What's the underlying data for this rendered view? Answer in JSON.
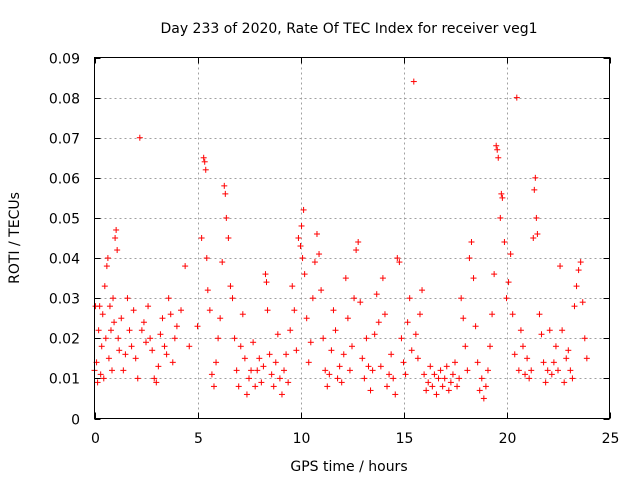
{
  "chart_data": {
    "type": "scatter",
    "title": "Day 233 of 2020, Rate Of TEC Index for receiver veg1",
    "xlabel": "GPS time / hours",
    "ylabel": "ROTI / TECUs",
    "xlim": [
      0,
      25
    ],
    "ylim": [
      0,
      0.09
    ],
    "xticks": [
      0,
      5,
      10,
      15,
      20,
      25
    ],
    "xtick_labels": [
      "0",
      "5",
      "10",
      "15",
      "20",
      "25"
    ],
    "yticks": [
      0,
      0.01,
      0.02,
      0.03,
      0.04,
      0.05,
      0.06,
      0.07,
      0.08,
      0.09
    ],
    "ytick_labels": [
      "0",
      "0.01",
      "0.02",
      "0.03",
      "0.04",
      "0.05",
      "0.06",
      "0.07",
      "0.08",
      "0.09"
    ],
    "grid": true,
    "marker": "+",
    "color": "#ff0000",
    "series": [
      {
        "name": "ROTI",
        "points": [
          [
            0.0,
            0.012
          ],
          [
            0.05,
            0.028
          ],
          [
            0.1,
            0.014
          ],
          [
            0.15,
            0.009
          ],
          [
            0.2,
            0.022
          ],
          [
            0.25,
            0.028
          ],
          [
            0.3,
            0.011
          ],
          [
            0.35,
            0.018
          ],
          [
            0.4,
            0.026
          ],
          [
            0.45,
            0.01
          ],
          [
            0.5,
            0.033
          ],
          [
            0.55,
            0.02
          ],
          [
            0.6,
            0.038
          ],
          [
            0.65,
            0.04
          ],
          [
            0.7,
            0.015
          ],
          [
            0.75,
            0.028
          ],
          [
            0.8,
            0.022
          ],
          [
            0.85,
            0.012
          ],
          [
            0.9,
            0.03
          ],
          [
            0.95,
            0.024
          ],
          [
            1.0,
            0.045
          ],
          [
            1.05,
            0.047
          ],
          [
            1.1,
            0.042
          ],
          [
            1.15,
            0.02
          ],
          [
            1.2,
            0.017
          ],
          [
            1.3,
            0.025
          ],
          [
            1.4,
            0.012
          ],
          [
            1.5,
            0.016
          ],
          [
            1.6,
            0.03
          ],
          [
            1.7,
            0.022
          ],
          [
            1.8,
            0.018
          ],
          [
            1.9,
            0.027
          ],
          [
            2.0,
            0.015
          ],
          [
            2.1,
            0.01
          ],
          [
            2.2,
            0.07
          ],
          [
            2.3,
            0.022
          ],
          [
            2.4,
            0.024
          ],
          [
            2.5,
            0.019
          ],
          [
            2.6,
            0.028
          ],
          [
            2.7,
            0.02
          ],
          [
            2.8,
            0.017
          ],
          [
            2.9,
            0.01
          ],
          [
            3.0,
            0.009
          ],
          [
            3.1,
            0.013
          ],
          [
            3.2,
            0.021
          ],
          [
            3.3,
            0.025
          ],
          [
            3.4,
            0.018
          ],
          [
            3.5,
            0.016
          ],
          [
            3.6,
            0.03
          ],
          [
            3.7,
            0.026
          ],
          [
            3.8,
            0.014
          ],
          [
            3.9,
            0.02
          ],
          [
            4.0,
            0.023
          ],
          [
            4.2,
            0.027
          ],
          [
            4.4,
            0.038
          ],
          [
            4.6,
            0.018
          ],
          [
            5.0,
            0.023
          ],
          [
            5.2,
            0.045
          ],
          [
            5.3,
            0.065
          ],
          [
            5.35,
            0.064
          ],
          [
            5.4,
            0.062
          ],
          [
            5.45,
            0.04
          ],
          [
            5.5,
            0.032
          ],
          [
            5.6,
            0.027
          ],
          [
            5.7,
            0.011
          ],
          [
            5.8,
            0.008
          ],
          [
            5.9,
            0.014
          ],
          [
            6.0,
            0.02
          ],
          [
            6.1,
            0.025
          ],
          [
            6.2,
            0.039
          ],
          [
            6.3,
            0.058
          ],
          [
            6.35,
            0.056
          ],
          [
            6.4,
            0.05
          ],
          [
            6.5,
            0.045
          ],
          [
            6.6,
            0.033
          ],
          [
            6.7,
            0.03
          ],
          [
            6.8,
            0.02
          ],
          [
            6.9,
            0.012
          ],
          [
            7.0,
            0.008
          ],
          [
            7.1,
            0.018
          ],
          [
            7.2,
            0.026
          ],
          [
            7.3,
            0.015
          ],
          [
            7.4,
            0.006
          ],
          [
            7.5,
            0.01
          ],
          [
            7.6,
            0.012
          ],
          [
            7.7,
            0.019
          ],
          [
            7.8,
            0.008
          ],
          [
            7.9,
            0.012
          ],
          [
            8.0,
            0.015
          ],
          [
            8.1,
            0.009
          ],
          [
            8.2,
            0.013
          ],
          [
            8.3,
            0.036
          ],
          [
            8.35,
            0.034
          ],
          [
            8.4,
            0.027
          ],
          [
            8.5,
            0.016
          ],
          [
            8.6,
            0.011
          ],
          [
            8.7,
            0.008
          ],
          [
            8.8,
            0.014
          ],
          [
            8.9,
            0.021
          ],
          [
            9.0,
            0.01
          ],
          [
            9.1,
            0.006
          ],
          [
            9.2,
            0.012
          ],
          [
            9.3,
            0.016
          ],
          [
            9.4,
            0.009
          ],
          [
            9.5,
            0.022
          ],
          [
            9.6,
            0.033
          ],
          [
            9.7,
            0.027
          ],
          [
            9.8,
            0.017
          ],
          [
            9.9,
            0.045
          ],
          [
            10.0,
            0.043
          ],
          [
            10.05,
            0.048
          ],
          [
            10.1,
            0.04
          ],
          [
            10.15,
            0.052
          ],
          [
            10.2,
            0.036
          ],
          [
            10.3,
            0.025
          ],
          [
            10.4,
            0.014
          ],
          [
            10.5,
            0.019
          ],
          [
            10.6,
            0.03
          ],
          [
            10.7,
            0.039
          ],
          [
            10.8,
            0.046
          ],
          [
            10.9,
            0.041
          ],
          [
            11.0,
            0.032
          ],
          [
            11.1,
            0.02
          ],
          [
            11.2,
            0.012
          ],
          [
            11.3,
            0.008
          ],
          [
            11.4,
            0.011
          ],
          [
            11.5,
            0.017
          ],
          [
            11.6,
            0.027
          ],
          [
            11.7,
            0.022
          ],
          [
            11.8,
            0.01
          ],
          [
            11.9,
            0.013
          ],
          [
            12.0,
            0.009
          ],
          [
            12.1,
            0.016
          ],
          [
            12.2,
            0.035
          ],
          [
            12.3,
            0.025
          ],
          [
            12.4,
            0.012
          ],
          [
            12.5,
            0.018
          ],
          [
            12.6,
            0.03
          ],
          [
            12.7,
            0.042
          ],
          [
            12.8,
            0.044
          ],
          [
            12.9,
            0.029
          ],
          [
            13.0,
            0.015
          ],
          [
            13.1,
            0.01
          ],
          [
            13.2,
            0.02
          ],
          [
            13.3,
            0.013
          ],
          [
            13.4,
            0.007
          ],
          [
            13.5,
            0.012
          ],
          [
            13.6,
            0.021
          ],
          [
            13.7,
            0.031
          ],
          [
            13.8,
            0.024
          ],
          [
            13.9,
            0.013
          ],
          [
            14.0,
            0.035
          ],
          [
            14.1,
            0.026
          ],
          [
            14.2,
            0.008
          ],
          [
            14.3,
            0.011
          ],
          [
            14.4,
            0.016
          ],
          [
            14.5,
            0.01
          ],
          [
            14.6,
            0.006
          ],
          [
            14.7,
            0.04
          ],
          [
            14.8,
            0.039
          ],
          [
            14.9,
            0.02
          ],
          [
            15.0,
            0.014
          ],
          [
            15.1,
            0.011
          ],
          [
            15.2,
            0.024
          ],
          [
            15.3,
            0.03
          ],
          [
            15.4,
            0.017
          ],
          [
            15.5,
            0.084
          ],
          [
            15.6,
            0.021
          ],
          [
            15.7,
            0.015
          ],
          [
            15.8,
            0.026
          ],
          [
            15.9,
            0.032
          ],
          [
            16.0,
            0.011
          ],
          [
            16.1,
            0.007
          ],
          [
            16.2,
            0.009
          ],
          [
            16.3,
            0.013
          ],
          [
            16.4,
            0.008
          ],
          [
            16.5,
            0.011
          ],
          [
            16.6,
            0.006
          ],
          [
            16.7,
            0.01
          ],
          [
            16.8,
            0.012
          ],
          [
            16.9,
            0.008
          ],
          [
            17.0,
            0.01
          ],
          [
            17.1,
            0.013
          ],
          [
            17.2,
            0.007
          ],
          [
            17.3,
            0.009
          ],
          [
            17.4,
            0.011
          ],
          [
            17.5,
            0.014
          ],
          [
            17.6,
            0.008
          ],
          [
            17.7,
            0.01
          ],
          [
            17.8,
            0.03
          ],
          [
            17.9,
            0.025
          ],
          [
            18.0,
            0.018
          ],
          [
            18.1,
            0.012
          ],
          [
            18.2,
            0.04
          ],
          [
            18.3,
            0.044
          ],
          [
            18.4,
            0.035
          ],
          [
            18.5,
            0.023
          ],
          [
            18.6,
            0.014
          ],
          [
            18.7,
            0.007
          ],
          [
            18.8,
            0.01
          ],
          [
            18.9,
            0.005
          ],
          [
            19.0,
            0.008
          ],
          [
            19.1,
            0.012
          ],
          [
            19.2,
            0.018
          ],
          [
            19.3,
            0.026
          ],
          [
            19.4,
            0.036
          ],
          [
            19.5,
            0.068
          ],
          [
            19.55,
            0.067
          ],
          [
            19.6,
            0.065
          ],
          [
            19.7,
            0.05
          ],
          [
            19.75,
            0.056
          ],
          [
            19.8,
            0.055
          ],
          [
            19.9,
            0.044
          ],
          [
            20.0,
            0.03
          ],
          [
            20.1,
            0.034
          ],
          [
            20.2,
            0.041
          ],
          [
            20.3,
            0.026
          ],
          [
            20.4,
            0.016
          ],
          [
            20.5,
            0.08
          ],
          [
            20.6,
            0.012
          ],
          [
            20.7,
            0.022
          ],
          [
            20.8,
            0.018
          ],
          [
            20.9,
            0.011
          ],
          [
            21.0,
            0.015
          ],
          [
            21.1,
            0.01
          ],
          [
            21.2,
            0.012
          ],
          [
            21.3,
            0.045
          ],
          [
            21.35,
            0.057
          ],
          [
            21.4,
            0.06
          ],
          [
            21.45,
            0.05
          ],
          [
            21.5,
            0.046
          ],
          [
            21.6,
            0.026
          ],
          [
            21.7,
            0.021
          ],
          [
            21.8,
            0.014
          ],
          [
            21.9,
            0.009
          ],
          [
            22.0,
            0.012
          ],
          [
            22.1,
            0.022
          ],
          [
            22.2,
            0.011
          ],
          [
            22.3,
            0.014
          ],
          [
            22.4,
            0.018
          ],
          [
            22.5,
            0.012
          ],
          [
            22.6,
            0.038
          ],
          [
            22.7,
            0.022
          ],
          [
            22.8,
            0.009
          ],
          [
            22.9,
            0.015
          ],
          [
            23.0,
            0.017
          ],
          [
            23.1,
            0.012
          ],
          [
            23.2,
            0.01
          ],
          [
            23.3,
            0.028
          ],
          [
            23.4,
            0.033
          ],
          [
            23.5,
            0.037
          ],
          [
            23.6,
            0.039
          ],
          [
            23.7,
            0.029
          ],
          [
            23.8,
            0.02
          ],
          [
            23.9,
            0.015
          ]
        ]
      }
    ]
  }
}
